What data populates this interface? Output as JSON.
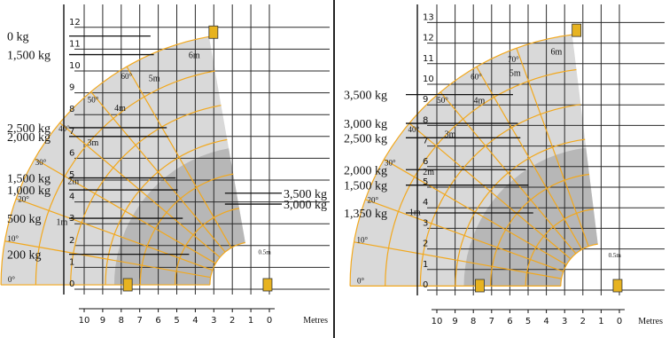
{
  "colors": {
    "grid": "#2a2a2a",
    "envelope_fill": "#d9d9d9",
    "envelope_inner_fill": "#b0b0b0",
    "load_line": "#f2a81d",
    "leader": "#111111",
    "machine": "#e7b320"
  },
  "chart_data": [
    {
      "type": "other",
      "x_unit": "Metres",
      "x_range": [
        10,
        0
      ],
      "x_ticks": [
        "10",
        "9",
        "8",
        "7",
        "6",
        "5",
        "4",
        "3",
        "2",
        "1",
        "0"
      ],
      "y_range": [
        0,
        12
      ],
      "y_ticks": [
        "0",
        "1",
        "2",
        "3",
        "4",
        "5",
        "6",
        "7",
        "8",
        "9",
        "10",
        "11",
        "12"
      ],
      "grid": true,
      "angles": [
        "0°",
        "10°",
        "20°",
        "30°",
        "40°",
        "50°",
        "60°"
      ],
      "extensions": [
        "1m",
        "2m",
        "3m",
        "4m",
        "5m",
        "6m"
      ],
      "loads_left": [
        {
          "label": "0 kg",
          "y": 11.6
        },
        {
          "label": "1,500 kg",
          "y": 10.75
        },
        {
          "label": "2,500 kg",
          "y": 7.4
        },
        {
          "label": "2,000 kg",
          "y": 7.0
        },
        {
          "label": "1,500 kg",
          "y": 5.1
        },
        {
          "label": "1,000 kg",
          "y": 4.55
        },
        {
          "label": "500 kg",
          "y": 3.25
        },
        {
          "label": "200 kg",
          "y": 1.6
        }
      ],
      "loads_right": [
        {
          "label": "3,500 kg",
          "y": 4.4
        },
        {
          "label": "3,000 kg",
          "y": 3.9
        }
      ],
      "annotation_ground": "0.5m"
    },
    {
      "type": "other",
      "x_unit": "Metres",
      "x_range": [
        10,
        0
      ],
      "x_ticks": [
        "10",
        "9",
        "8",
        "7",
        "6",
        "5",
        "4",
        "3",
        "2",
        "1",
        "0"
      ],
      "y_range": [
        0,
        13
      ],
      "y_ticks": [
        "0",
        "1",
        "2",
        "3",
        "4",
        "5",
        "6",
        "7",
        "8",
        "9",
        "10",
        "11",
        "12",
        "13"
      ],
      "grid": true,
      "angles": [
        "0°",
        "10°",
        "20°",
        "30°",
        "40°",
        "50°",
        "60°",
        "70°"
      ],
      "extensions": [
        "1m",
        "2m",
        "3m",
        "4m",
        "5m",
        "6m"
      ],
      "loads_left": [
        {
          "label": "3,500 kg",
          "y": 9.5
        },
        {
          "label": "3,000 kg",
          "y": 8.1
        },
        {
          "label": "2,500 kg",
          "y": 7.4
        },
        {
          "label": "2,000 kg",
          "y": 5.85
        },
        {
          "label": "1,500 kg",
          "y": 5.1
        },
        {
          "label": "1,350 kg",
          "y": 3.75
        }
      ],
      "annotation_ground": "0.5m"
    }
  ]
}
